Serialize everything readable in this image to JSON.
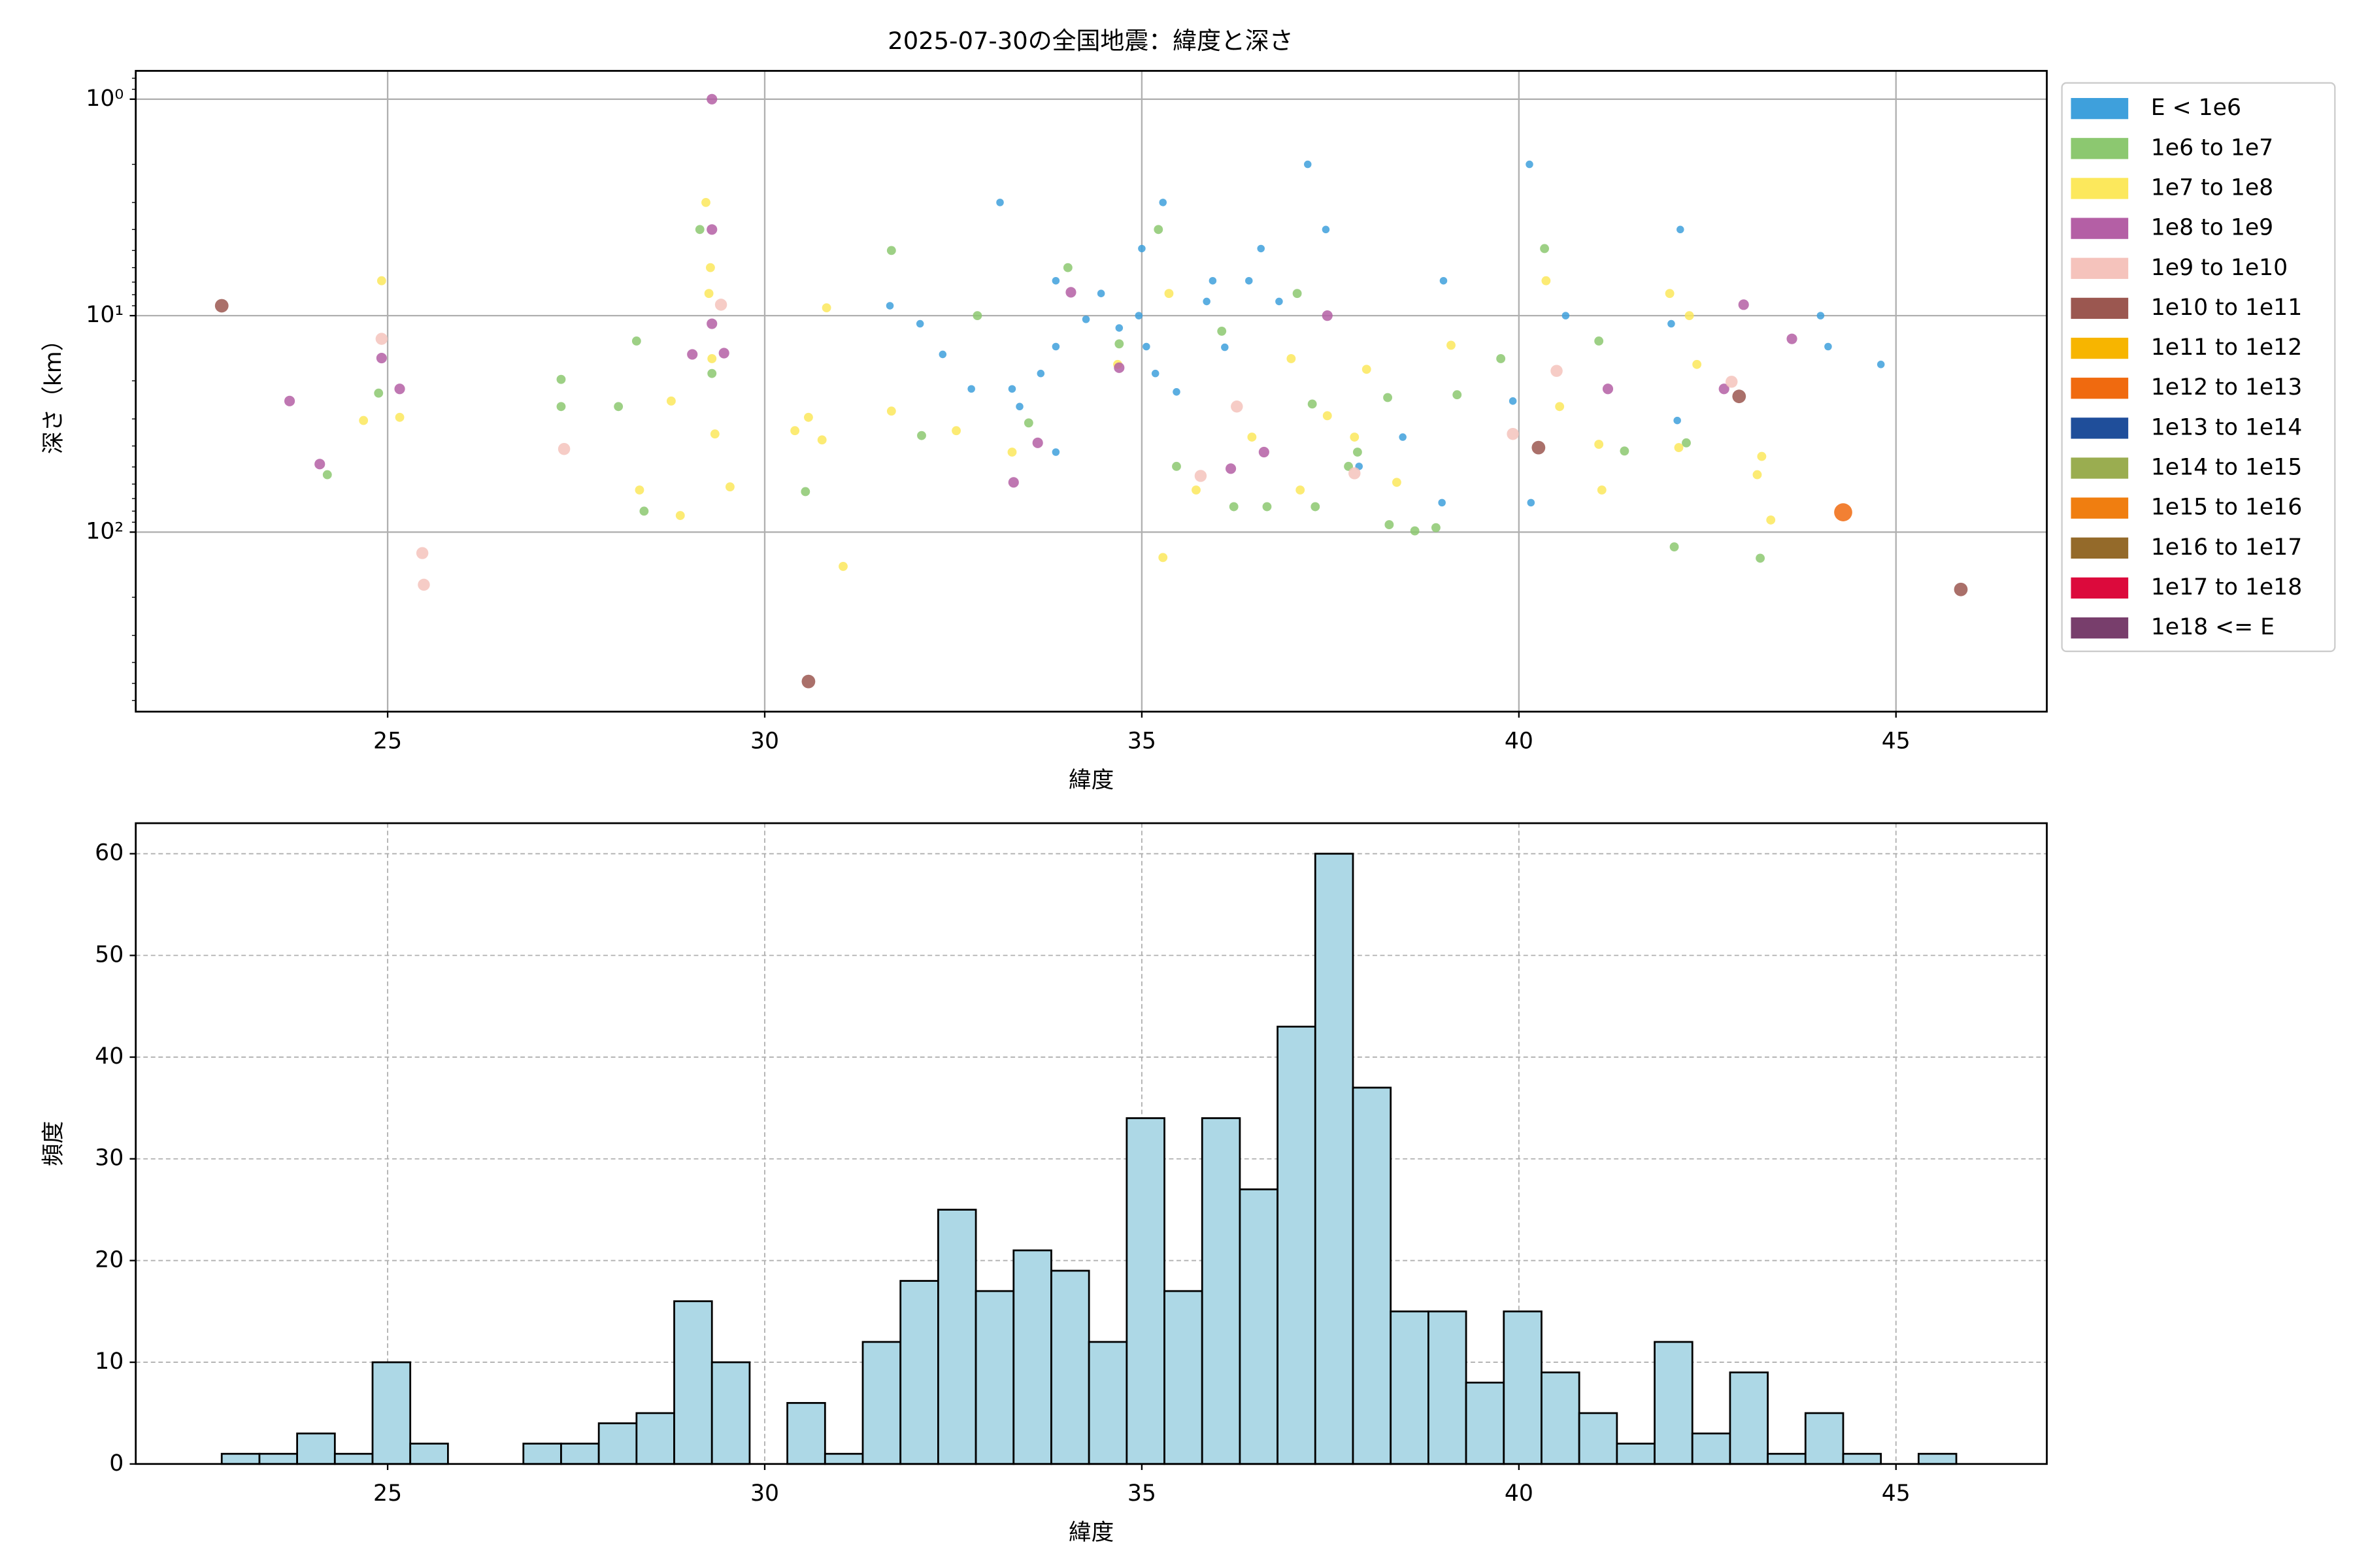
{
  "chart_data": [
    {
      "type": "scatter",
      "title": "2025-07-30の全国地震：緯度と深さ",
      "xlabel": "緯度",
      "ylabel": "深さ（km）",
      "log_y": true,
      "invert_y": true,
      "grid": true,
      "legend": "outside right",
      "xlim": [
        21.66,
        47.0
      ],
      "xticks": [
        25,
        30,
        35,
        40,
        45
      ],
      "ylim": [
        0.74,
        675
      ],
      "yticks": [
        {
          "value": 1,
          "label": "10⁰"
        },
        {
          "value": 10,
          "label": "10¹"
        },
        {
          "value": 100,
          "label": "10²"
        }
      ],
      "series": [
        {
          "name": "E < 1e6",
          "color": "#3ea0dc",
          "x": [
            33.12,
            37.2,
            40.14,
            35.28,
            37.44,
            42.14,
            31.66,
            32.06,
            32.36,
            32.74,
            33.28,
            33.66,
            33.86,
            34.26,
            34.7,
            34.96,
            35.06,
            35.18,
            35.46,
            35.86,
            36.1,
            36.42,
            36.58,
            36.82,
            35.94,
            35.0,
            34.46,
            33.86,
            33.38,
            33.86,
            40.16,
            42.1,
            42.02,
            39.92,
            40.62,
            44.8,
            44.0,
            44.1,
            39.0,
            38.98,
            37.88,
            38.46
          ],
          "values": [
            3.0,
            2.0,
            2.0,
            3.0,
            4.0,
            4.0,
            9.0,
            10.9,
            15.1,
            21.8,
            21.8,
            18.5,
            13.9,
            10.4,
            11.4,
            10.0,
            13.9,
            18.5,
            22.5,
            8.6,
            14.0,
            6.9,
            4.9,
            8.6,
            6.9,
            4.9,
            7.9,
            6.9,
            26.3,
            42.7,
            73.1,
            30.5,
            10.9,
            24.8,
            10.0,
            16.8,
            10.0,
            13.9,
            6.9,
            73.1,
            49.7,
            36.4
          ]
        },
        {
          "name": "1e6 to 1e7",
          "color": "#8cc870",
          "x": [
            27.3,
            27.3,
            24.88,
            24.2,
            28.06,
            28.3,
            28.4,
            29.14,
            29.3,
            30.54,
            31.68,
            32.08,
            32.82,
            33.5,
            34.02,
            34.7,
            35.22,
            35.46,
            36.22,
            36.66,
            37.06,
            37.3,
            37.74,
            37.86,
            38.28,
            38.62,
            38.9,
            39.18,
            39.76,
            40.34,
            41.06,
            42.06,
            43.2,
            42.22,
            41.4,
            38.26,
            36.06,
            37.26
          ],
          "values": [
            19.7,
            26.3,
            22.8,
            54.3,
            26.3,
            13.1,
            80,
            4.0,
            18.5,
            65,
            5.0,
            35.8,
            10.0,
            31.3,
            6.0,
            13.5,
            4.0,
            49.7,
            76.3,
            76.3,
            7.9,
            76.3,
            49.7,
            42.7,
            92.4,
            98.7,
            95.4,
            23.2,
            15.8,
            4.9,
            13.1,
            117,
            132,
            38.7,
            42.2,
            23.9,
            11.8,
            25.6
          ]
        },
        {
          "name": "1e7 to 1e8",
          "color": "#fce85c",
          "x": [
            24.92,
            24.68,
            25.16,
            28.76,
            28.34,
            28.88,
            29.22,
            29.28,
            29.26,
            29.3,
            29.34,
            29.54,
            30.82,
            30.4,
            30.58,
            30.76,
            31.04,
            31.68,
            32.54,
            33.28,
            34.68,
            35.36,
            35.28,
            35.72,
            36.46,
            36.98,
            37.1,
            37.46,
            37.82,
            37.98,
            38.38,
            39.1,
            40.36,
            40.54,
            41.06,
            41.1,
            42.0,
            42.26,
            42.12,
            43.16,
            43.22,
            43.34,
            42.36
          ],
          "values": [
            6.9,
            30.5,
            29.5,
            24.8,
            63.9,
            83.8,
            3.0,
            6.0,
            7.9,
            15.8,
            35.2,
            61.8,
            9.2,
            34.0,
            29.5,
            37.5,
            144,
            27.6,
            34.0,
            42.7,
            16.8,
            7.9,
            131,
            63.9,
            36.4,
            15.8,
            63.9,
            29.0,
            36.4,
            17.7,
            58.9,
            13.7,
            6.9,
            26.3,
            39.3,
            63.9,
            7.9,
            10.0,
            40.7,
            54.3,
            44.7,
            87.9,
            16.8
          ]
        },
        {
          "name": "1e8 to 1e9",
          "color": "#b45fa5",
          "x": [
            29.3,
            23.7,
            24.1,
            24.92,
            25.16,
            29.04,
            29.3,
            29.3,
            29.46,
            42.98,
            43.62,
            41.18,
            42.72,
            36.62,
            36.18,
            33.3,
            34.06,
            34.7,
            37.46,
            33.62
          ],
          "values": [
            1.0,
            24.8,
            48.5,
            15.7,
            21.8,
            15.1,
            4.0,
            10.9,
            14.9,
            8.9,
            12.8,
            21.8,
            21.8,
            42.7,
            50.9,
            58.9,
            7.8,
            17.4,
            10.0,
            38.7
          ]
        },
        {
          "name": "1e9 to 1e10",
          "color": "#f5c3bc",
          "x": [
            24.92,
            29.42,
            27.34,
            25.46,
            25.48,
            40.5,
            39.92,
            42.82,
            36.26,
            35.78,
            37.82
          ],
          "values": [
            12.8,
            8.9,
            41.3,
            125,
            175,
            18.0,
            35.2,
            20.2,
            26.3,
            55,
            53.5
          ]
        },
        {
          "name": "1e10 to 1e11",
          "color": "#9b5750",
          "x": [
            22.8,
            30.58,
            42.92,
            40.26,
            45.86
          ],
          "values": [
            9.0,
            490,
            23.6,
            40.7,
            184
          ]
        },
        {
          "name": "1e11 to 1e12",
          "color": "#f7b500",
          "x": [],
          "values": []
        },
        {
          "name": "1e12 to 1e13",
          "color": "#f06a0f",
          "x": [
            44.3
          ],
          "values": [
            81
          ]
        },
        {
          "name": "1e13 to 1e14",
          "color": "#1f4e9a",
          "x": [],
          "values": []
        },
        {
          "name": "1e14 to 1e15",
          "color": "#9aad50",
          "x": [],
          "values": []
        },
        {
          "name": "1e15 to 1e16",
          "color": "#f07e10",
          "x": [],
          "values": []
        },
        {
          "name": "1e16 to 1e17",
          "color": "#946a2a",
          "x": [],
          "values": []
        },
        {
          "name": "1e17 to 1e18",
          "color": "#dc0a3c",
          "x": [],
          "values": []
        },
        {
          "name": "1e18 <= E",
          "color": "#783e6c",
          "x": [],
          "values": []
        }
      ]
    },
    {
      "type": "histogram",
      "xlabel": "緯度",
      "ylabel": "頻度",
      "color": "#add8e6",
      "grid": true,
      "xlim": [
        21.66,
        47.0
      ],
      "xticks": [
        25,
        30,
        35,
        40,
        45
      ],
      "ylim": [
        0,
        63
      ],
      "yticks": [
        0,
        10,
        20,
        30,
        40,
        50,
        60
      ],
      "bins": [
        22.8,
        23.3,
        23.8,
        24.3,
        24.8,
        25.3,
        25.8,
        26.3,
        26.8,
        27.3,
        27.8,
        28.3,
        28.8,
        29.3,
        29.8,
        30.3,
        30.8,
        31.3,
        31.8,
        32.3,
        32.8,
        33.3,
        33.8,
        34.3,
        34.8,
        35.3,
        35.8,
        36.3,
        36.8,
        37.3,
        37.8,
        38.3,
        38.8,
        39.3,
        39.8,
        40.3,
        40.8,
        41.3,
        41.8,
        42.3,
        42.8,
        43.3,
        43.8,
        44.3,
        44.8,
        45.3,
        45.8
      ],
      "values": [
        1,
        1,
        3,
        1,
        10,
        2,
        0,
        0,
        2,
        2,
        4,
        5,
        16,
        10,
        0,
        6,
        1,
        12,
        18,
        25,
        17,
        21,
        19,
        12,
        34,
        17,
        34,
        27,
        43,
        60,
        37,
        15,
        15,
        8,
        15,
        9,
        5,
        2,
        12,
        3,
        9,
        1,
        5,
        1,
        0,
        1
      ]
    }
  ]
}
